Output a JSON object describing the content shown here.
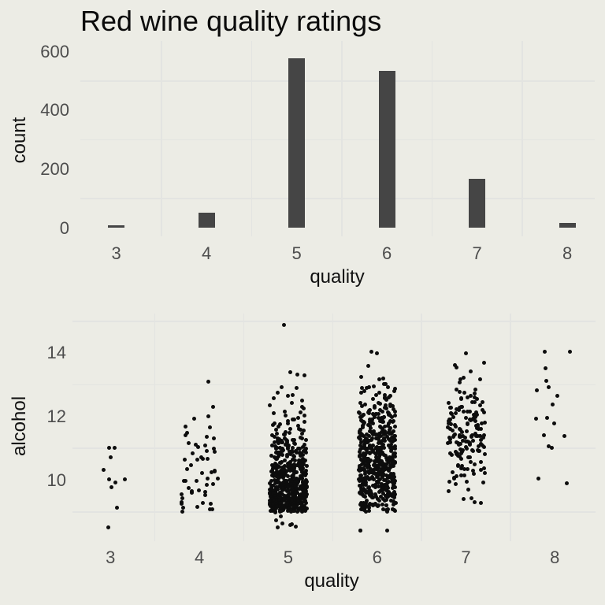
{
  "figure": {
    "title": "Red wine quality ratings",
    "background_color": "#ECECE5",
    "gridline_color": "#E3E4E1",
    "tick_label_color": "#4D4D4D",
    "bar_color": "#454545",
    "point_color": "#0D0D0D"
  },
  "chart_data": [
    {
      "type": "bar",
      "title": "Red wine quality ratings",
      "xlabel": "quality",
      "ylabel": "count",
      "categories": [
        3,
        4,
        5,
        6,
        7,
        8
      ],
      "values": [
        10,
        53,
        577,
        535,
        167,
        17
      ],
      "yticks": [
        0,
        200,
        400,
        600
      ],
      "xticks": [
        3,
        4,
        5,
        6,
        7,
        8
      ],
      "ylim": [
        0,
        636
      ],
      "xlim": [
        2.6,
        8.31
      ],
      "minor_gridlines_y": [
        100,
        300,
        500
      ],
      "minor_gridlines_x": [
        3.5,
        4.5,
        5.5,
        6.5,
        7.5
      ],
      "grid": "minor-only",
      "legend": "none"
    },
    {
      "type": "scatter",
      "subtype": "jitter",
      "title": "",
      "xlabel": "quality",
      "ylabel": "alcohol",
      "x_categories": [
        3,
        4,
        5,
        6,
        7,
        8
      ],
      "yticks": [
        10,
        12,
        14
      ],
      "xticks": [
        3,
        4,
        5,
        6,
        7,
        8
      ],
      "ylim": [
        8.1,
        15.25
      ],
      "xlim": [
        2.57,
        8.47
      ],
      "minor_gridlines_y": [
        9,
        11,
        13,
        15
      ],
      "minor_gridlines_x": [
        3.5,
        4.5,
        5.5,
        6.5,
        7.5
      ],
      "grid": "minor-only",
      "legend": "none",
      "jitter_halfwidth": 0.21,
      "groups": [
        {
          "quality": 3,
          "n": 10,
          "alcohol_min": 8.5,
          "alcohol_max": 11.05,
          "alcohol_values": [
            8.5,
            9.1,
            9.8,
            9.95,
            10.0,
            10.05,
            10.3,
            10.75,
            11.0,
            11.05
          ]
        },
        {
          "quality": 4,
          "n": 53,
          "alcohol_min": 9.0,
          "alcohol_max": 13.1,
          "alcohol_bins": [
            [
              9.25,
              10
            ],
            [
              9.75,
              12
            ],
            [
              10.25,
              8
            ],
            [
              10.75,
              9
            ],
            [
              11.25,
              8
            ],
            [
              11.75,
              3
            ],
            [
              12.25,
              2
            ]
          ],
          "alcohol_outliers": [
            13.1
          ]
        },
        {
          "quality": 5,
          "n": 577,
          "alcohol_min": 8.5,
          "alcohol_max": 14.9,
          "alcohol_bins": [
            [
              8.75,
              9
            ],
            [
              9.25,
              180
            ],
            [
              9.75,
              160
            ],
            [
              10.25,
              90
            ],
            [
              10.75,
              60
            ],
            [
              11.25,
              40
            ],
            [
              11.75,
              18
            ],
            [
              12.25,
              10
            ],
            [
              12.75,
              6
            ],
            [
              13.25,
              3
            ]
          ],
          "alcohol_outliers": [
            14.9
          ]
        },
        {
          "quality": 6,
          "n": 535,
          "alcohol_min": 8.4,
          "alcohol_max": 14.05,
          "alcohol_bins": [
            [
              8.55,
              3
            ],
            [
              9.25,
              60
            ],
            [
              9.75,
              90
            ],
            [
              10.25,
              96
            ],
            [
              10.75,
              90
            ],
            [
              11.25,
              80
            ],
            [
              11.75,
              55
            ],
            [
              12.25,
              35
            ],
            [
              12.75,
              18
            ],
            [
              13.25,
              5
            ]
          ],
          "alcohol_outliers": [
            13.6,
            14.0,
            14.05
          ]
        },
        {
          "quality": 7,
          "n": 167,
          "alcohol_min": 9.2,
          "alcohol_max": 14.0,
          "alcohol_bins": [
            [
              9.5,
              6
            ],
            [
              10.05,
              12
            ],
            [
              10.55,
              18
            ],
            [
              11.05,
              35
            ],
            [
              11.55,
              40
            ],
            [
              12.05,
              30
            ],
            [
              12.55,
              15
            ],
            [
              13.0,
              6
            ],
            [
              13.45,
              4
            ]
          ],
          "alcohol_outliers": [
            14.0
          ]
        },
        {
          "quality": 8,
          "n": 17,
          "alcohol_min": 9.9,
          "alcohol_max": 14.05,
          "alcohol_values": [
            9.9,
            10.1,
            11.0,
            11.05,
            11.4,
            11.45,
            11.8,
            11.9,
            11.95,
            12.4,
            12.65,
            12.8,
            12.9,
            13.15,
            13.5,
            14.05,
            14.05
          ]
        }
      ]
    }
  ]
}
